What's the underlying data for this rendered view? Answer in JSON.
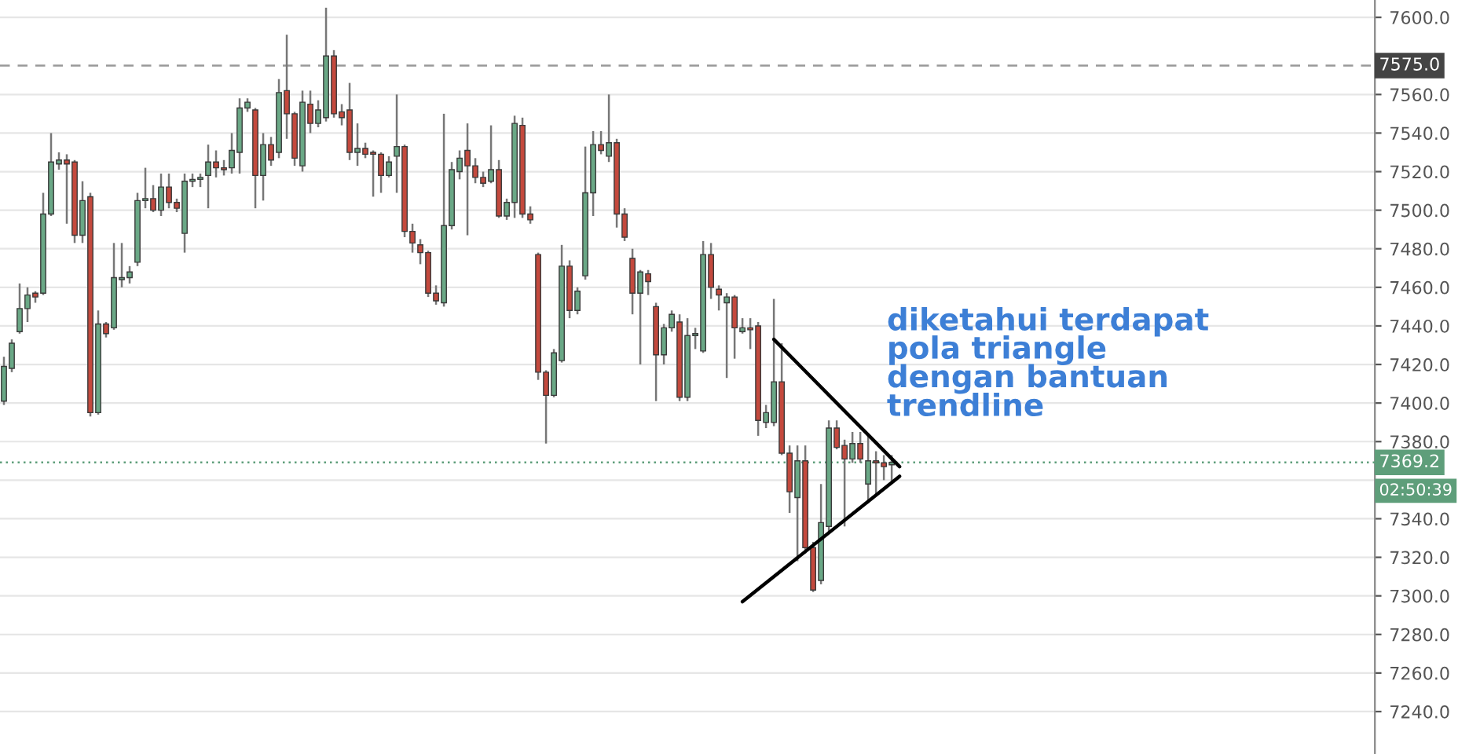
{
  "chart_data": {
    "type": "candlestick",
    "categories": [
      null,
      null,
      null,
      null,
      null,
      null,
      null,
      null,
      null,
      null,
      null,
      null,
      null,
      null,
      null,
      null,
      null,
      null,
      null,
      null,
      null,
      null,
      null,
      null,
      null,
      null,
      null,
      null,
      null,
      null,
      null,
      null,
      null,
      null,
      null,
      null,
      null,
      null,
      null,
      null,
      null,
      null,
      null,
      null,
      null,
      null,
      null,
      null,
      null,
      null,
      null,
      null,
      null,
      null,
      null,
      null,
      null,
      null,
      null,
      null,
      null,
      null,
      null,
      null,
      null,
      null,
      null,
      null,
      null,
      null,
      null,
      null,
      null,
      null,
      null,
      null,
      null,
      null,
      null,
      null,
      null,
      null,
      null,
      null,
      null,
      null,
      null,
      null,
      null,
      null,
      null,
      null,
      null,
      null,
      null,
      null,
      null,
      null,
      null,
      null,
      null,
      null,
      null,
      null,
      null,
      null,
      null,
      null,
      null,
      null,
      null,
      null,
      null,
      null,
      null,
      null,
      null,
      null,
      null,
      null,
      null,
      null,
      null,
      null,
      null,
      null,
      null,
      null,
      null,
      null,
      null,
      null,
      null,
      null,
      null,
      null,
      null,
      null,
      null,
      null,
      null,
      null,
      null,
      null,
      null,
      null,
      null,
      null,
      null,
      null,
      null,
      null,
      null,
      null,
      null,
      null,
      null,
      null,
      null,
      null,
      null,
      null,
      null,
      null,
      null,
      null,
      null,
      null,
      null,
      null,
      null,
      null,
      null,
      null,
      null
    ],
    "ohlc": [
      [
        7401,
        7424,
        7399,
        7419
      ],
      [
        7418,
        7433,
        7416,
        7431
      ],
      [
        7437,
        7462,
        7436,
        7449
      ],
      [
        7449,
        7460,
        7442,
        7456
      ],
      [
        7457,
        7458,
        7452,
        7455
      ],
      [
        7457,
        7509,
        7456,
        7498
      ],
      [
        7498,
        7540,
        7497,
        7525
      ],
      [
        7524,
        7530,
        7521,
        7526
      ],
      [
        7526,
        7529,
        7493,
        7524
      ],
      [
        7525,
        7526,
        7483,
        7487
      ],
      [
        7487,
        7515,
        7483,
        7505
      ],
      [
        7507,
        7509,
        7393,
        7395
      ],
      [
        7395,
        7448,
        7394,
        7441
      ],
      [
        7441,
        7442,
        7434,
        7436
      ],
      [
        7439,
        7483,
        7438,
        7465
      ],
      [
        7464,
        7483,
        7460,
        7465
      ],
      [
        7465,
        7471,
        7462,
        7468
      ],
      [
        7473,
        7509,
        7471,
        7505
      ],
      [
        7505,
        7522,
        7501,
        7506
      ],
      [
        7506,
        7513,
        7499,
        7500
      ],
      [
        7500,
        7519,
        7497,
        7512
      ],
      [
        7512,
        7519,
        7501,
        7504
      ],
      [
        7504,
        7506,
        7499,
        7501
      ],
      [
        7488,
        7519,
        7478,
        7515
      ],
      [
        7515,
        7519,
        7512,
        7516
      ],
      [
        7516,
        7519,
        7512,
        7517
      ],
      [
        7518,
        7534,
        7501,
        7525
      ],
      [
        7525,
        7531,
        7517,
        7522
      ],
      [
        7522,
        7526,
        7518,
        7521
      ],
      [
        7522,
        7540,
        7519,
        7531
      ],
      [
        7530,
        7558,
        7519,
        7553
      ],
      [
        7553,
        7558,
        7551,
        7556
      ],
      [
        7552,
        7553,
        7501,
        7518
      ],
      [
        7518,
        7540,
        7505,
        7534
      ],
      [
        7534,
        7538,
        7523,
        7526
      ],
      [
        7530,
        7568,
        7527,
        7561
      ],
      [
        7562,
        7591,
        7537,
        7550
      ],
      [
        7550,
        7551,
        7523,
        7527
      ],
      [
        7523,
        7562,
        7520,
        7556
      ],
      [
        7555,
        7562,
        7540,
        7545
      ],
      [
        7545,
        7557,
        7543,
        7552
      ],
      [
        7548,
        7605,
        7546,
        7580
      ],
      [
        7580,
        7583,
        7548,
        7550
      ],
      [
        7551,
        7555,
        7544,
        7548
      ],
      [
        7552,
        7566,
        7526,
        7530
      ],
      [
        7530,
        7545,
        7523,
        7532
      ],
      [
        7532,
        7535,
        7527,
        7529
      ],
      [
        7530,
        7531,
        7507,
        7529
      ],
      [
        7529,
        7530,
        7509,
        7518
      ],
      [
        7518,
        7528,
        7517,
        7525
      ],
      [
        7528,
        7560,
        7509,
        7533
      ],
      [
        7533,
        7534,
        7486,
        7489
      ],
      [
        7489,
        7493,
        7478,
        7483
      ],
      [
        7482,
        7485,
        7472,
        7478
      ],
      [
        7478,
        7479,
        7455,
        7457
      ],
      [
        7457,
        7461,
        7451,
        7453
      ],
      [
        7452,
        7550,
        7450,
        7492
      ],
      [
        7492,
        7525,
        7490,
        7521
      ],
      [
        7520,
        7531,
        7516,
        7527
      ],
      [
        7531,
        7545,
        7487,
        7523
      ],
      [
        7523,
        7527,
        7514,
        7517
      ],
      [
        7517,
        7520,
        7512,
        7514
      ],
      [
        7515,
        7544,
        7514,
        7521
      ],
      [
        7521,
        7526,
        7496,
        7497
      ],
      [
        7497,
        7506,
        7495,
        7504
      ],
      [
        7504,
        7549,
        7496,
        7545
      ],
      [
        7544,
        7548,
        7496,
        7498
      ],
      [
        7498,
        7502,
        7493,
        7495
      ],
      [
        7477,
        7478,
        7412,
        7416
      ],
      [
        7416,
        7417,
        7379,
        7404
      ],
      [
        7404,
        7428,
        7403,
        7426
      ],
      [
        7422,
        7482,
        7421,
        7471
      ],
      [
        7471,
        7474,
        7444,
        7448
      ],
      [
        7448,
        7460,
        7446,
        7458
      ],
      [
        7466,
        7533,
        7464,
        7509
      ],
      [
        7509,
        7541,
        7497,
        7534
      ],
      [
        7534,
        7541,
        7529,
        7531
      ],
      [
        7528,
        7560,
        7525,
        7535
      ],
      [
        7535,
        7537,
        7491,
        7498
      ],
      [
        7498,
        7501,
        7484,
        7486
      ],
      [
        7475,
        7480,
        7446,
        7457
      ],
      [
        7457,
        7469,
        7420,
        7468
      ],
      [
        7467,
        7469,
        7456,
        7463
      ],
      [
        7450,
        7452,
        7401,
        7425
      ],
      [
        7425,
        7441,
        7420,
        7439
      ],
      [
        7439,
        7448,
        7437,
        7446
      ],
      [
        7442,
        7446,
        7401,
        7403
      ],
      [
        7403,
        7444,
        7401,
        7435
      ],
      [
        7435,
        7439,
        7428,
        7436
      ],
      [
        7427,
        7484,
        7426,
        7477
      ],
      [
        7477,
        7483,
        7454,
        7460
      ],
      [
        7459,
        7461,
        7448,
        7456
      ],
      [
        7452,
        7457,
        7413,
        7455
      ],
      [
        7455,
        7456,
        7423,
        7439
      ],
      [
        7437,
        7444,
        7436,
        7439
      ],
      [
        7439,
        7444,
        7428,
        7438
      ],
      [
        7440,
        7442,
        7383,
        7391
      ],
      [
        7390,
        7399,
        7387,
        7395
      ],
      [
        7390,
        7454,
        7388,
        7411
      ],
      [
        7411,
        7431,
        7373,
        7374
      ],
      [
        7374,
        7378,
        7343,
        7354
      ],
      [
        7351,
        7378,
        7318,
        7370
      ],
      [
        7370,
        7378,
        7322,
        7325
      ],
      [
        7325,
        7328,
        7302,
        7303
      ],
      [
        7308,
        7358,
        7306,
        7338
      ],
      [
        7336,
        7391,
        7332,
        7387
      ],
      [
        7387,
        7391,
        7376,
        7377
      ],
      [
        7378,
        7381,
        7336,
        7371
      ],
      [
        7371,
        7385,
        7369,
        7379
      ],
      [
        7379,
        7385,
        7369,
        7371
      ],
      [
        7358,
        7384,
        7348,
        7370
      ],
      [
        7370,
        7375,
        7352,
        7369
      ],
      [
        7369,
        7373,
        7360,
        7367
      ],
      [
        7368,
        7373,
        7359,
        7369.2
      ],
      null,
      null,
      null,
      null,
      null,
      null,
      null,
      null,
      null,
      null,
      null,
      null,
      null,
      null,
      null,
      null,
      null,
      null,
      null,
      null,
      null,
      null,
      null,
      null,
      null,
      null,
      null,
      null,
      null,
      null,
      null,
      null,
      null,
      null,
      null,
      null,
      null,
      null,
      null,
      null,
      null,
      null,
      null,
      null,
      null,
      null,
      null,
      null,
      null,
      null,
      null,
      null,
      null,
      null,
      null,
      null,
      null,
      null,
      null,
      null,
      null
    ],
    "colors": [
      "#6aa886",
      "#6aa886",
      "#6aa886",
      "#6aa886",
      "#c4493d",
      "#6aa886",
      "#6aa886",
      "#6aa886",
      "#c4493d",
      "#c4493d",
      "#6aa886",
      "#c4493d",
      "#6aa886",
      "#c4493d",
      "#6aa886",
      "#6aa886",
      "#6aa886",
      "#6aa886",
      "#6aa886",
      "#c4493d",
      "#6aa886",
      "#c4493d",
      "#c4493d",
      "#6aa886",
      "#6aa886",
      "#6aa886",
      "#6aa886",
      "#c4493d",
      "#c4493d",
      "#6aa886",
      "#6aa886",
      "#6aa886",
      "#c4493d",
      "#6aa886",
      "#c4493d",
      "#6aa886",
      "#c4493d",
      "#c4493d",
      "#6aa886",
      "#c4493d",
      "#6aa886",
      "#6aa886",
      "#c4493d",
      "#c4493d",
      "#c4493d",
      "#6aa886",
      "#c4493d",
      "#c4493d",
      "#c4493d",
      "#6aa886",
      "#6aa886",
      "#c4493d",
      "#c4493d",
      "#c4493d",
      "#c4493d",
      "#c4493d",
      "#6aa886",
      "#6aa886",
      "#6aa886",
      "#c4493d",
      "#c4493d",
      "#c4493d",
      "#6aa886",
      "#c4493d",
      "#6aa886",
      "#6aa886",
      "#c4493d",
      "#c4493d",
      "#c4493d",
      "#c4493d",
      "#6aa886",
      "#6aa886",
      "#c4493d",
      "#6aa886",
      "#6aa886",
      "#6aa886",
      "#c4493d",
      "#6aa886",
      "#c4493d",
      "#c4493d",
      "#c4493d",
      "#6aa886",
      "#c4493d",
      "#c4493d",
      "#6aa886",
      "#6aa886",
      "#c4493d",
      "#6aa886",
      "#6aa886",
      "#6aa886",
      "#c4493d",
      "#c4493d",
      "#6aa886",
      "#c4493d",
      "#6aa886",
      "#c4493d",
      "#c4493d",
      "#6aa886",
      "#6aa886",
      "#c4493d",
      "#c4493d",
      "#6aa886",
      "#c4493d",
      "#c4493d",
      "#6aa886",
      "#6aa886",
      "#c4493d",
      "#c4493d",
      "#6aa886",
      "#c4493d",
      "#6aa886",
      "#c4493d",
      "#c4493d",
      "#6aa886",
      null,
      null,
      null,
      null,
      null,
      null,
      null,
      null,
      null,
      null,
      null,
      null,
      null,
      null,
      null,
      null,
      null,
      null,
      null,
      null,
      null,
      null,
      null,
      null,
      null,
      null,
      null,
      null,
      null,
      null,
      null,
      null,
      null,
      null,
      null,
      null,
      null,
      null,
      null,
      null,
      null,
      null,
      null,
      null,
      null,
      null,
      null,
      null,
      null,
      null,
      null,
      null,
      null,
      null,
      null,
      null,
      null,
      null,
      null,
      null,
      null
    ],
    "series": [
      {
        "type": "line",
        "color": "#000000",
        "values": [
          null,
          null,
          null,
          null,
          null,
          null,
          null,
          null,
          null,
          null,
          null,
          null,
          null,
          null,
          null,
          null,
          null,
          null,
          null,
          null,
          null,
          null,
          null,
          null,
          null,
          null,
          null,
          null,
          null,
          null,
          null,
          null,
          null,
          null,
          null,
          null,
          null,
          null,
          null,
          null,
          null,
          null,
          null,
          null,
          null,
          null,
          null,
          null,
          null,
          null,
          null,
          null,
          null,
          null,
          null,
          null,
          null,
          null,
          null,
          null,
          null,
          null,
          null,
          null,
          null,
          null,
          null,
          null,
          null,
          null,
          null,
          null,
          null,
          null,
          null,
          null,
          null,
          null,
          null,
          null,
          null,
          null,
          null,
          null,
          null,
          null,
          null,
          null,
          null,
          null,
          null,
          null,
          null,
          null,
          null,
          null,
          null,
          null,
          7433,
          null,
          null,
          null,
          null,
          null,
          null,
          null,
          null,
          null,
          null,
          null,
          null,
          null,
          null,
          null,
          7367,
          null,
          null,
          null,
          null,
          null,
          null,
          null,
          null,
          null,
          null,
          null,
          null,
          null,
          null,
          null,
          null,
          null,
          null,
          null,
          null,
          null,
          null,
          null,
          null,
          null,
          null,
          null,
          null,
          null,
          null,
          null,
          null,
          null,
          null,
          null,
          null,
          null,
          null,
          null,
          null,
          null,
          null,
          null,
          null,
          null,
          null,
          null,
          null,
          null,
          null,
          null,
          null,
          null,
          null,
          null,
          null,
          null,
          null,
          null,
          null
        ]
      },
      {
        "type": "line",
        "color": "#000000",
        "values": [
          null,
          null,
          null,
          null,
          null,
          null,
          null,
          null,
          null,
          null,
          null,
          null,
          null,
          null,
          null,
          null,
          null,
          null,
          null,
          null,
          null,
          null,
          null,
          null,
          null,
          null,
          null,
          null,
          null,
          null,
          null,
          null,
          null,
          null,
          null,
          null,
          null,
          null,
          null,
          null,
          null,
          null,
          null,
          null,
          null,
          null,
          null,
          null,
          null,
          null,
          null,
          null,
          null,
          null,
          null,
          null,
          null,
          null,
          null,
          null,
          null,
          null,
          null,
          null,
          null,
          null,
          null,
          null,
          null,
          null,
          null,
          null,
          null,
          null,
          null,
          null,
          null,
          null,
          null,
          null,
          null,
          null,
          null,
          null,
          null,
          null,
          null,
          null,
          null,
          null,
          null,
          null,
          null,
          null,
          7297,
          null,
          null,
          null,
          null,
          null,
          null,
          null,
          null,
          null,
          null,
          null,
          null,
          null,
          null,
          null,
          null,
          null,
          null,
          null,
          7362,
          null,
          null,
          null,
          null,
          null,
          null,
          null,
          null,
          null,
          null,
          null,
          null,
          null,
          null,
          null,
          null,
          null,
          null,
          null,
          null,
          null,
          null,
          null,
          null,
          null,
          null,
          null,
          null,
          null,
          null,
          null,
          null,
          null,
          null,
          null,
          null,
          null,
          null,
          null,
          null,
          null,
          null,
          null,
          null,
          null,
          null,
          null,
          null,
          null,
          null,
          null,
          null,
          null,
          null,
          null,
          null,
          null,
          null,
          null,
          null
        ]
      }
    ],
    "ylim": [
      7218,
      7609
    ],
    "yticks": [
      {
        "value": 7240,
        "label": "7240.0"
      },
      {
        "value": 7260,
        "label": "7260.0"
      },
      {
        "value": 7280,
        "label": "7280.0"
      },
      {
        "value": 7300,
        "label": "7300.0"
      },
      {
        "value": 7320,
        "label": "7320.0"
      },
      {
        "value": 7340,
        "label": "7340.0"
      },
      {
        "value": 7360,
        "label": null
      },
      {
        "value": 7380,
        "label": "7380.0"
      },
      {
        "value": 7400,
        "label": "7400.0"
      },
      {
        "value": 7420,
        "label": "7420.0"
      },
      {
        "value": 7440,
        "label": "7440.0"
      },
      {
        "value": 7460,
        "label": "7460.0"
      },
      {
        "value": 7480,
        "label": "7480.0"
      },
      {
        "value": 7500,
        "label": "7500.0"
      },
      {
        "value": 7520,
        "label": "7520.0"
      },
      {
        "value": 7540,
        "label": "7540.0"
      },
      {
        "value": 7560,
        "label": "7560.0"
      },
      {
        "value": 7600,
        "label": "7600.0"
      }
    ],
    "grid": "y",
    "tick_labels": "y",
    "ref_lines": [
      {
        "axis": "y",
        "value": 7575,
        "label": "7575.0",
        "color": "#999999",
        "line_style": "dashed"
      },
      {
        "axis": "y",
        "value": 7369.2,
        "label": "7369.2",
        "color": "#5e9e7a",
        "line_style": "dotted"
      }
    ],
    "annotations": [
      "diketahui terdapat\npola triangle\ndengan bantuan\ntrendline",
      "02:50:39"
    ]
  }
}
